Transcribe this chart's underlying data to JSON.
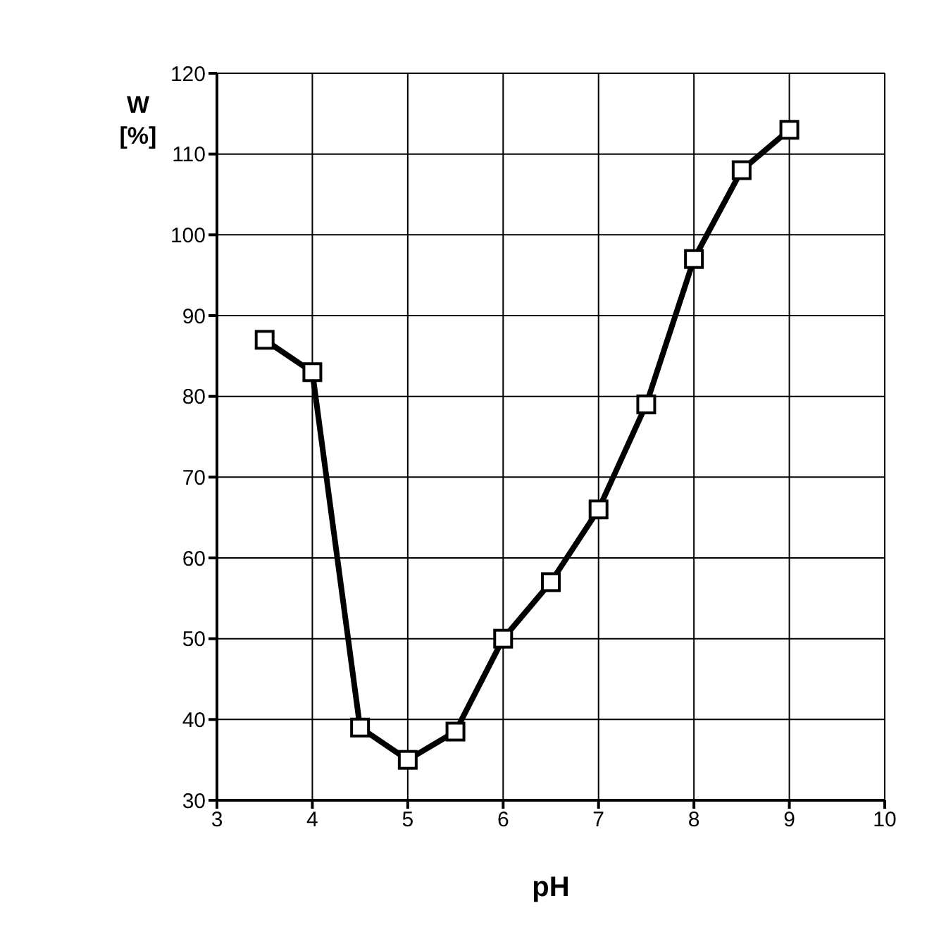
{
  "chart_data": {
    "type": "line",
    "xlabel": "pH",
    "ylabel": "W [%]",
    "x": [
      3.5,
      4,
      4.5,
      5,
      5.5,
      6,
      6.5,
      7,
      7.5,
      8,
      8.5,
      9
    ],
    "series": [
      {
        "color": "#000000",
        "values": [
          87,
          83,
          39,
          35,
          38.5,
          50,
          57,
          66,
          79,
          97,
          108,
          113
        ]
      }
    ],
    "xlim": [
      3,
      10
    ],
    "xticks": [
      3,
      4,
      5,
      6,
      7,
      8,
      9,
      10
    ],
    "ylim": [
      30,
      120
    ],
    "yticks": [
      30,
      40,
      50,
      60,
      70,
      80,
      90,
      100,
      110,
      120
    ],
    "grid": true,
    "legend": false,
    "marker": "square",
    "line_style": "solid"
  }
}
